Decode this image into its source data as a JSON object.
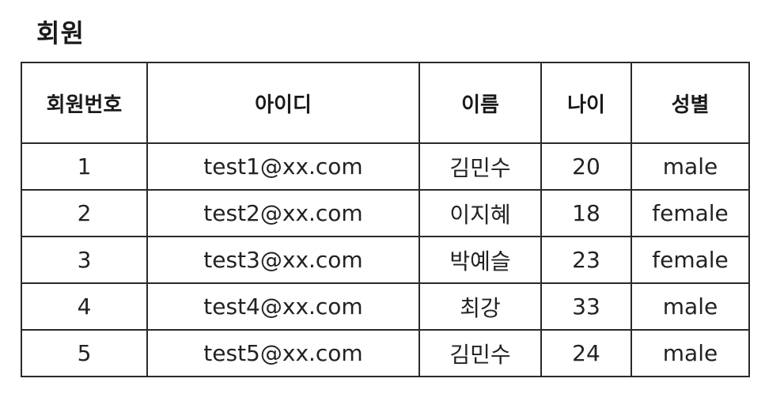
{
  "title": "회원",
  "table": {
    "headers": [
      "회원번호",
      "아이디",
      "이름",
      "나이",
      "성별"
    ],
    "rows": [
      [
        "1",
        "test1@xx.com",
        "김민수",
        "20",
        "male"
      ],
      [
        "2",
        "test2@xx.com",
        "이지혜",
        "18",
        "female"
      ],
      [
        "3",
        "test3@xx.com",
        "박예슬",
        "23",
        "female"
      ],
      [
        "4",
        "test4@xx.com",
        "최강",
        "33",
        "male"
      ],
      [
        "5",
        "test5@xx.com",
        "김민수",
        "24",
        "male"
      ]
    ]
  }
}
